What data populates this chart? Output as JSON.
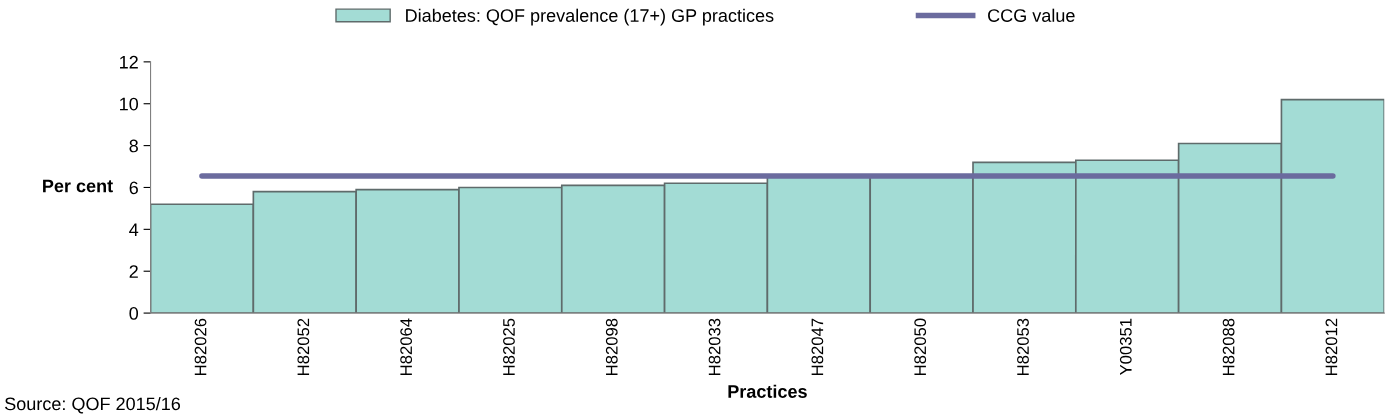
{
  "chart_data": {
    "type": "bar",
    "ylabel": "Per cent",
    "xlabel": "Practices",
    "categories": [
      "H82026",
      "H82052",
      "H82064",
      "H82025",
      "H82098",
      "H82033",
      "H82047",
      "H82050",
      "H82053",
      "Y00351",
      "H82088",
      "H82012"
    ],
    "series": [
      {
        "name": "Diabetes: QOF prevalence (17+) GP practices",
        "color": "#a3dcd5",
        "values": [
          5.2,
          5.8,
          5.9,
          6.0,
          6.1,
          6.2,
          6.6,
          6.6,
          7.2,
          7.3,
          8.1,
          10.2
        ]
      },
      {
        "name": "CCG value",
        "type": "line",
        "color": "#6b6b9e",
        "values": [
          6.55,
          6.55,
          6.55,
          6.55,
          6.55,
          6.55,
          6.55,
          6.55,
          6.55,
          6.55,
          6.55,
          6.55
        ]
      }
    ],
    "ylim": [
      0,
      12
    ],
    "yticks": [
      0,
      2,
      4,
      6,
      8,
      10,
      12
    ],
    "grid": false,
    "legend": "top",
    "marker": "none",
    "line_style": "solid",
    "annotations": [
      "Source: QOF 2015/16"
    ]
  }
}
